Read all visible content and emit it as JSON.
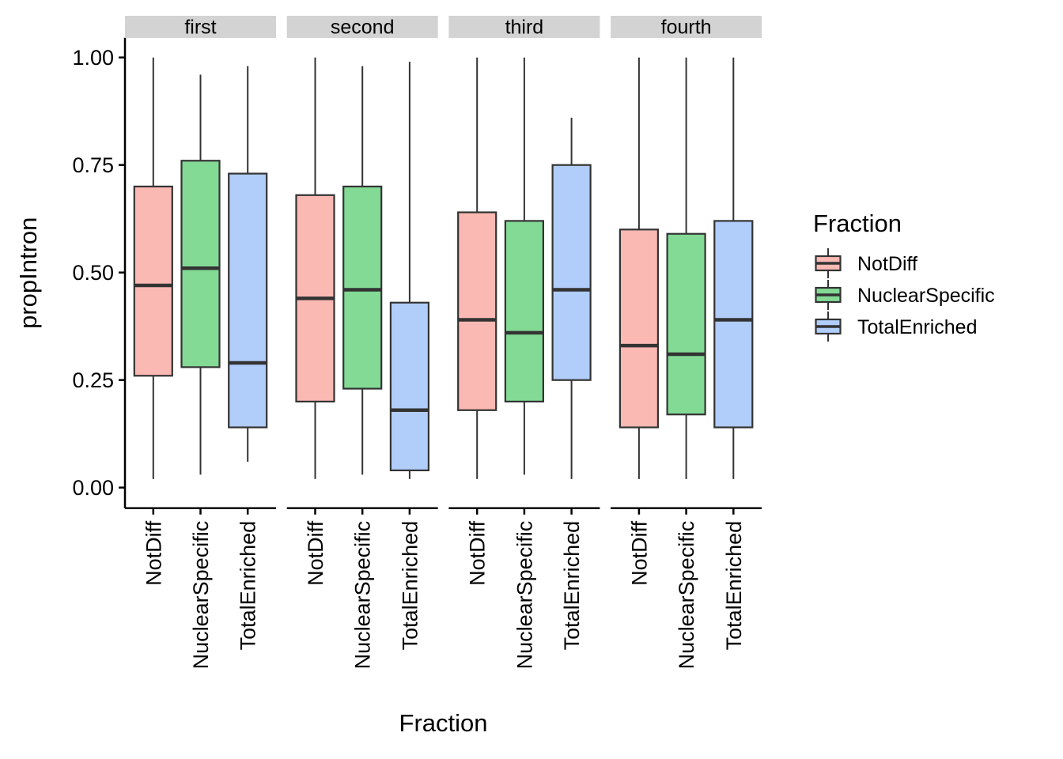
{
  "figure": {
    "background": "#FFFFFF"
  },
  "chart_data": {
    "type": "boxplot",
    "title": "",
    "xlabel": "Fraction",
    "ylabel": "propIntron",
    "ylim": [
      0,
      1
    ],
    "grid": "off",
    "yticks": {
      "values": [
        0,
        0.25,
        0.5,
        0.75,
        1
      ],
      "labels": [
        "0.00",
        "0.25",
        "0.50",
        "0.75",
        "1.00"
      ]
    },
    "facets": [
      "first",
      "second",
      "third",
      "fourth"
    ],
    "groups": [
      {
        "name": "NotDiff",
        "color": "#FBB9B4"
      },
      {
        "name": "NuclearSpecific",
        "color": "#83DA95"
      },
      {
        "name": "TotalEnriched",
        "color": "#B1CDFA"
      }
    ],
    "legend": {
      "title": "Fraction",
      "position": "right",
      "entries": [
        "NotDiff",
        "NuclearSpecific",
        "TotalEnriched"
      ]
    },
    "style": {
      "box_border": "#333333",
      "axis_color": "#000000",
      "strip_bg": "#D3D3D3",
      "strip_text": "#000000"
    },
    "boxes": [
      {
        "facet": "first",
        "group": "NotDiff",
        "whisker_min": 0.02,
        "q1": 0.26,
        "median": 0.47,
        "q3": 0.7,
        "whisker_max": 1.0
      },
      {
        "facet": "first",
        "group": "NuclearSpecific",
        "whisker_min": 0.03,
        "q1": 0.28,
        "median": 0.51,
        "q3": 0.76,
        "whisker_max": 0.96
      },
      {
        "facet": "first",
        "group": "TotalEnriched",
        "whisker_min": 0.06,
        "q1": 0.14,
        "median": 0.29,
        "q3": 0.73,
        "whisker_max": 0.98
      },
      {
        "facet": "second",
        "group": "NotDiff",
        "whisker_min": 0.02,
        "q1": 0.2,
        "median": 0.44,
        "q3": 0.68,
        "whisker_max": 1.0
      },
      {
        "facet": "second",
        "group": "NuclearSpecific",
        "whisker_min": 0.03,
        "q1": 0.23,
        "median": 0.46,
        "q3": 0.7,
        "whisker_max": 0.98
      },
      {
        "facet": "second",
        "group": "TotalEnriched",
        "whisker_min": 0.02,
        "q1": 0.04,
        "median": 0.18,
        "q3": 0.43,
        "whisker_max": 0.99
      },
      {
        "facet": "third",
        "group": "NotDiff",
        "whisker_min": 0.02,
        "q1": 0.18,
        "median": 0.39,
        "q3": 0.64,
        "whisker_max": 1.0
      },
      {
        "facet": "third",
        "group": "NuclearSpecific",
        "whisker_min": 0.03,
        "q1": 0.2,
        "median": 0.36,
        "q3": 0.62,
        "whisker_max": 1.0
      },
      {
        "facet": "third",
        "group": "TotalEnriched",
        "whisker_min": 0.02,
        "q1": 0.25,
        "median": 0.46,
        "q3": 0.75,
        "whisker_max": 0.86
      },
      {
        "facet": "fourth",
        "group": "NotDiff",
        "whisker_min": 0.02,
        "q1": 0.14,
        "median": 0.33,
        "q3": 0.6,
        "whisker_max": 1.0
      },
      {
        "facet": "fourth",
        "group": "NuclearSpecific",
        "whisker_min": 0.02,
        "q1": 0.17,
        "median": 0.31,
        "q3": 0.59,
        "whisker_max": 1.0
      },
      {
        "facet": "fourth",
        "group": "TotalEnriched",
        "whisker_min": 0.02,
        "q1": 0.14,
        "median": 0.39,
        "q3": 0.62,
        "whisker_max": 1.0
      }
    ]
  }
}
